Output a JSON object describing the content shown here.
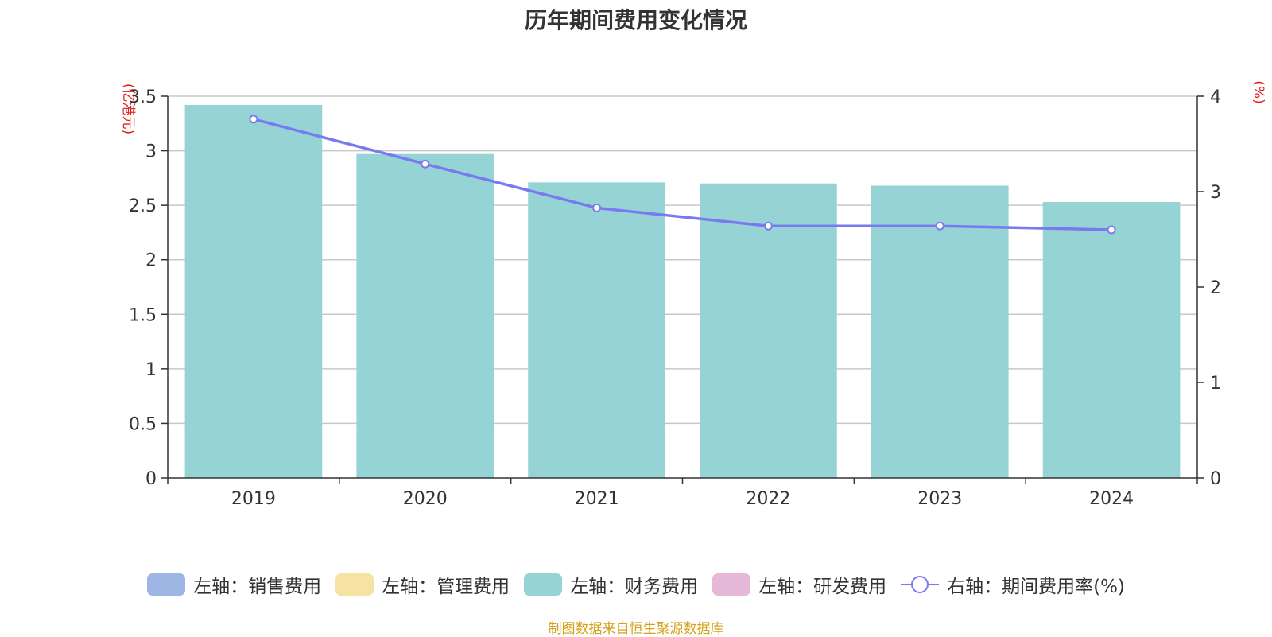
{
  "title": "历年期间费用变化情况",
  "source_note": "制图数据来自恒生聚源数据库",
  "left_unit": "(亿港元)",
  "right_unit": "(%)",
  "colors": {
    "sales": "#9db6e3",
    "admin": "#f6e3a3",
    "finance": "#96d3d5",
    "rnd": "#e6b8d8",
    "rate": "#7a7af0",
    "unit_text": "#e02020",
    "source_text": "#d4a017"
  },
  "legend": [
    {
      "label": "左轴：销售费用",
      "kind": "bar",
      "color_key": "sales"
    },
    {
      "label": "左轴：管理费用",
      "kind": "bar",
      "color_key": "admin"
    },
    {
      "label": "左轴：财务费用",
      "kind": "bar",
      "color_key": "finance"
    },
    {
      "label": "左轴：研发费用",
      "kind": "bar",
      "color_key": "rnd"
    },
    {
      "label": "右轴：期间费用率(%)",
      "kind": "line",
      "color_key": "rate"
    }
  ],
  "chart_data": {
    "type": "bar",
    "categories": [
      "2019",
      "2020",
      "2021",
      "2022",
      "2023",
      "2024"
    ],
    "series": [
      {
        "name": "左轴：财务费用",
        "axis": "left",
        "type": "bar",
        "values": [
          3.42,
          2.97,
          2.71,
          2.7,
          2.68,
          2.53
        ]
      },
      {
        "name": "右轴：期间费用率(%)",
        "axis": "right",
        "type": "line",
        "values": [
          3.76,
          3.29,
          2.83,
          2.64,
          2.64,
          2.6
        ]
      }
    ],
    "y_left": {
      "min": 0,
      "max": 3.5,
      "ticks": [
        "0",
        "0.5",
        "1",
        "1.5",
        "2",
        "2.5",
        "3",
        "3.5"
      ]
    },
    "y_right": {
      "min": 0,
      "max": 4,
      "ticks": [
        "0",
        "1",
        "2",
        "3",
        "4"
      ]
    },
    "grid": true,
    "legend_position": "bottom"
  }
}
